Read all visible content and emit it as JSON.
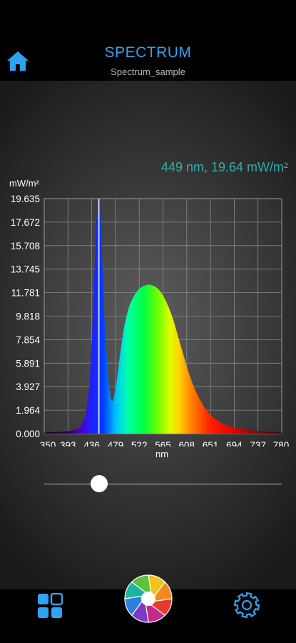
{
  "header": {
    "title": "SPECTRUM",
    "subtitle": "Spectrum_sample",
    "home_icon": "home-icon"
  },
  "readout": {
    "wavelength": 449,
    "value": 19.64,
    "text": "449 nm, 19.64 mW/m²"
  },
  "chart_data": {
    "type": "area",
    "ylabel": "mW/m²",
    "xlabel": "nm",
    "ylim": [
      0,
      19.635
    ],
    "xlim": [
      350,
      780
    ],
    "y_ticks": [
      "19.635",
      "17.672",
      "15.708",
      "13.745",
      "11.781",
      "9.818",
      "7.854",
      "5.891",
      "3.927",
      "1.964",
      "0.000"
    ],
    "x_ticks": [
      "350",
      "393",
      "436",
      "479",
      "522",
      "565",
      "608",
      "651",
      "694",
      "737",
      "780"
    ],
    "grid": true,
    "fill": "visible-spectrum",
    "cursor_nm": 449,
    "series": [
      {
        "x": [
          350,
          380,
          400,
          415,
          425,
          432,
          437,
          441,
          444,
          447,
          449,
          451,
          453,
          455,
          458,
          462,
          466,
          470,
          473,
          476,
          480,
          485,
          490,
          495,
          500,
          505,
          510,
          515,
          520,
          525,
          530,
          535,
          540,
          545,
          550,
          555,
          560,
          565,
          570,
          575,
          580,
          585,
          590,
          595,
          600,
          610,
          620,
          630,
          640,
          650,
          660,
          670,
          680,
          690,
          700,
          720,
          740,
          760,
          780
        ],
        "values": [
          0.1,
          0.15,
          0.25,
          0.5,
          1.5,
          4.0,
          8.5,
          13.5,
          17.5,
          19.3,
          19.64,
          19.0,
          17.0,
          14.5,
          10.5,
          7.0,
          4.5,
          3.0,
          2.7,
          3.0,
          4.0,
          5.8,
          7.5,
          9.0,
          10.0,
          10.8,
          11.3,
          11.7,
          12.0,
          12.2,
          12.35,
          12.42,
          12.45,
          12.4,
          12.3,
          12.15,
          11.9,
          11.55,
          11.1,
          10.6,
          10.0,
          9.3,
          8.5,
          7.7,
          6.9,
          5.3,
          4.0,
          3.0,
          2.2,
          1.6,
          1.2,
          0.9,
          0.7,
          0.55,
          0.45,
          0.3,
          0.2,
          0.15,
          0.1
        ]
      }
    ]
  },
  "bottom_bar": {
    "left_icon": "grid-icon",
    "center_icon": "camera-shutter-icon",
    "right_icon": "settings-gear-icon"
  },
  "colors": {
    "accent": "#2ea4f0",
    "readout": "#2fb1a8"
  }
}
